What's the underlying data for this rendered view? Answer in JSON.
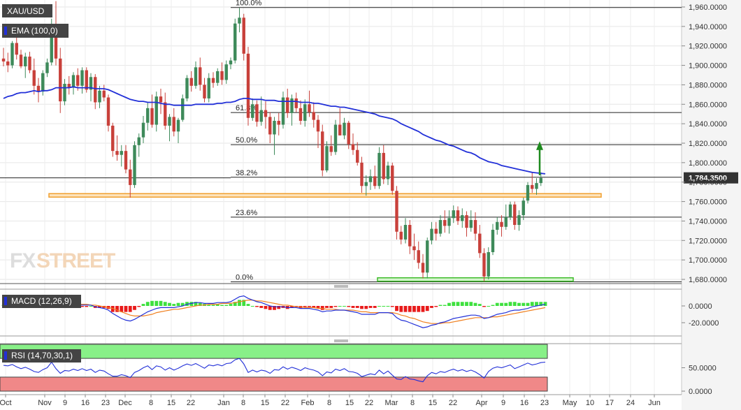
{
  "chart_data": {
    "type": "candlestick",
    "symbol": "XAU/USD",
    "indicator_labels": {
      "ema": "EMA (100,0)",
      "macd": "MACD (12,26,9)",
      "rsi": "RSI (14,70,30,1)"
    },
    "current_price_label": "1,784.3500",
    "ylim": [
      1676,
      1964
    ],
    "y_ticks": [
      "1,960.0000",
      "1,940.0000",
      "1,920.0000",
      "1,900.0000",
      "1,880.0000",
      "1,860.0000",
      "1,840.0000",
      "1,820.0000",
      "1,800.0000",
      "1,780.0000",
      "1,760.0000",
      "1,740.0000",
      "1,720.0000",
      "1,700.0000",
      "1,680.0000"
    ],
    "y_tick_values": [
      1960,
      1940,
      1920,
      1900,
      1880,
      1860,
      1840,
      1820,
      1800,
      1780,
      1760,
      1740,
      1720,
      1700,
      1680
    ],
    "x_ticks": [
      "Oct",
      "Nov",
      "9",
      "16",
      "23",
      "Dec",
      "8",
      "15",
      "22",
      "Jan",
      "8",
      "15",
      "22",
      "Feb",
      "8",
      "15",
      "22",
      "Mar",
      "8",
      "15",
      "22",
      "Apr",
      "9",
      "16",
      "23",
      "May",
      "10",
      "17",
      "24",
      "Jun"
    ],
    "fib_levels": [
      {
        "label": "100.0%",
        "value": 1959.5
      },
      {
        "label": "61.8%",
        "value": 1851.5
      },
      {
        "label": "50.0%",
        "value": 1818.5
      },
      {
        "label": "38.2%",
        "value": 1785.0
      },
      {
        "label": "23.6%",
        "value": 1744.0
      },
      {
        "label": "0.0%",
        "value": 1677.5
      }
    ],
    "support_zone_price": 1766,
    "double_bottom_zone_price": 1679.5,
    "last_close": 1784.35,
    "macd_ticks": [
      "0.0000",
      "-20.0000"
    ],
    "macd_tick_values": [
      0,
      -20
    ],
    "macd_ylim": [
      -32,
      18
    ],
    "rsi_ticks": [
      "50.0000",
      "0.0000"
    ],
    "rsi_tick_values": [
      50,
      0
    ],
    "rsi_ylim": [
      0,
      100
    ],
    "rsi_overbought": 70,
    "rsi_oversold": 30,
    "rsi_last": 62,
    "candles": [
      [
        1907,
        1918,
        1899,
        1904
      ],
      [
        1904,
        1913,
        1893,
        1900
      ],
      [
        1900,
        1925,
        1897,
        1923
      ],
      [
        1923,
        1931,
        1906,
        1911
      ],
      [
        1911,
        1916,
        1897,
        1899
      ],
      [
        1899,
        1913,
        1887,
        1909
      ],
      [
        1909,
        1914,
        1892,
        1895
      ],
      [
        1895,
        1907,
        1870,
        1879
      ],
      [
        1879,
        1887,
        1862,
        1873
      ],
      [
        1873,
        1895,
        1869,
        1892
      ],
      [
        1892,
        1907,
        1888,
        1903
      ],
      [
        1903,
        1948,
        1900,
        1942
      ],
      [
        1942,
        1966,
        1900,
        1907
      ],
      [
        1907,
        1918,
        1851,
        1863
      ],
      [
        1863,
        1886,
        1859,
        1881
      ],
      [
        1881,
        1889,
        1870,
        1877
      ],
      [
        1877,
        1893,
        1870,
        1890
      ],
      [
        1890,
        1897,
        1874,
        1879
      ],
      [
        1879,
        1898,
        1871,
        1895
      ],
      [
        1895,
        1898,
        1872,
        1875
      ],
      [
        1875,
        1892,
        1863,
        1888
      ],
      [
        1888,
        1891,
        1855,
        1862
      ],
      [
        1862,
        1879,
        1856,
        1874
      ],
      [
        1874,
        1880,
        1863,
        1867
      ],
      [
        1867,
        1870,
        1832,
        1838
      ],
      [
        1838,
        1841,
        1806,
        1812
      ],
      [
        1812,
        1828,
        1802,
        1808
      ],
      [
        1808,
        1818,
        1796,
        1812
      ],
      [
        1812,
        1818,
        1789,
        1793
      ],
      [
        1793,
        1803,
        1764,
        1777
      ],
      [
        1777,
        1822,
        1774,
        1818
      ],
      [
        1818,
        1830,
        1806,
        1826
      ],
      [
        1826,
        1848,
        1820,
        1841
      ],
      [
        1841,
        1862,
        1833,
        1856
      ],
      [
        1856,
        1870,
        1836,
        1839
      ],
      [
        1839,
        1873,
        1832,
        1868
      ],
      [
        1868,
        1876,
        1850,
        1862
      ],
      [
        1862,
        1872,
        1834,
        1838
      ],
      [
        1838,
        1850,
        1822,
        1847
      ],
      [
        1847,
        1856,
        1827,
        1832
      ],
      [
        1832,
        1846,
        1820,
        1844
      ],
      [
        1844,
        1870,
        1842,
        1866
      ],
      [
        1866,
        1890,
        1863,
        1887
      ],
      [
        1887,
        1894,
        1873,
        1879
      ],
      [
        1879,
        1904,
        1876,
        1898
      ],
      [
        1898,
        1908,
        1874,
        1880
      ],
      [
        1880,
        1887,
        1862,
        1866
      ],
      [
        1866,
        1892,
        1862,
        1887
      ],
      [
        1887,
        1893,
        1877,
        1882
      ],
      [
        1882,
        1897,
        1879,
        1894
      ],
      [
        1894,
        1903,
        1880,
        1885
      ],
      [
        1885,
        1905,
        1881,
        1901
      ],
      [
        1901,
        1908,
        1896,
        1905
      ],
      [
        1905,
        1948,
        1902,
        1943
      ],
      [
        1943,
        1959,
        1934,
        1949
      ],
      [
        1949,
        1953,
        1905,
        1912
      ],
      [
        1912,
        1919,
        1838,
        1846
      ],
      [
        1846,
        1866,
        1843,
        1860
      ],
      [
        1860,
        1864,
        1837,
        1842
      ],
      [
        1842,
        1868,
        1838,
        1854
      ],
      [
        1854,
        1863,
        1835,
        1847
      ],
      [
        1847,
        1852,
        1820,
        1829
      ],
      [
        1829,
        1847,
        1808,
        1843
      ],
      [
        1843,
        1851,
        1828,
        1839
      ],
      [
        1839,
        1873,
        1835,
        1867
      ],
      [
        1867,
        1876,
        1846,
        1851
      ],
      [
        1851,
        1870,
        1838,
        1866
      ],
      [
        1866,
        1872,
        1852,
        1856
      ],
      [
        1856,
        1864,
        1839,
        1843
      ],
      [
        1843,
        1865,
        1837,
        1860
      ],
      [
        1860,
        1874,
        1847,
        1852
      ],
      [
        1852,
        1862,
        1836,
        1844
      ],
      [
        1844,
        1849,
        1815,
        1832
      ],
      [
        1832,
        1839,
        1786,
        1792
      ],
      [
        1792,
        1822,
        1790,
        1817
      ],
      [
        1817,
        1828,
        1807,
        1811
      ],
      [
        1811,
        1844,
        1808,
        1839
      ],
      [
        1839,
        1856,
        1828,
        1828
      ],
      [
        1828,
        1846,
        1824,
        1841
      ],
      [
        1841,
        1843,
        1814,
        1819
      ],
      [
        1819,
        1830,
        1808,
        1813
      ],
      [
        1813,
        1821,
        1797,
        1800
      ],
      [
        1800,
        1806,
        1769,
        1776
      ],
      [
        1776,
        1787,
        1766,
        1780
      ],
      [
        1780,
        1793,
        1772,
        1786
      ],
      [
        1786,
        1797,
        1773,
        1776
      ],
      [
        1776,
        1816,
        1773,
        1810
      ],
      [
        1810,
        1818,
        1778,
        1783
      ],
      [
        1783,
        1801,
        1777,
        1797
      ],
      [
        1797,
        1800,
        1767,
        1771
      ],
      [
        1771,
        1776,
        1721,
        1729
      ],
      [
        1729,
        1735,
        1716,
        1721
      ],
      [
        1721,
        1743,
        1717,
        1736
      ],
      [
        1736,
        1741,
        1706,
        1714
      ],
      [
        1714,
        1727,
        1700,
        1710
      ],
      [
        1710,
        1719,
        1691,
        1697
      ],
      [
        1697,
        1706,
        1681,
        1687
      ],
      [
        1687,
        1723,
        1681,
        1720
      ],
      [
        1720,
        1739,
        1716,
        1732
      ],
      [
        1732,
        1739,
        1720,
        1727
      ],
      [
        1727,
        1746,
        1724,
        1741
      ],
      [
        1741,
        1751,
        1728,
        1735
      ],
      [
        1735,
        1751,
        1727,
        1743
      ],
      [
        1743,
        1756,
        1738,
        1751
      ],
      [
        1751,
        1755,
        1736,
        1740
      ],
      [
        1740,
        1753,
        1733,
        1746
      ],
      [
        1746,
        1750,
        1724,
        1733
      ],
      [
        1733,
        1751,
        1729,
        1741
      ],
      [
        1741,
        1749,
        1720,
        1727
      ],
      [
        1727,
        1736,
        1702,
        1707
      ],
      [
        1707,
        1712,
        1678,
        1683
      ],
      [
        1683,
        1713,
        1680,
        1708
      ],
      [
        1708,
        1737,
        1705,
        1731
      ],
      [
        1731,
        1744,
        1726,
        1739
      ],
      [
        1739,
        1746,
        1724,
        1734
      ],
      [
        1734,
        1757,
        1731,
        1744
      ],
      [
        1744,
        1760,
        1741,
        1757
      ],
      [
        1757,
        1760,
        1731,
        1736
      ],
      [
        1736,
        1751,
        1730,
        1746
      ],
      [
        1746,
        1764,
        1741,
        1761
      ],
      [
        1761,
        1780,
        1758,
        1777
      ],
      [
        1777,
        1790,
        1769,
        1773
      ],
      [
        1773,
        1784,
        1767,
        1779
      ],
      [
        1779,
        1790,
        1776,
        1784.35
      ]
    ],
    "ema": [
      1866,
      1868,
      1869,
      1871,
      1872,
      1872,
      1873,
      1874,
      1873,
      1874,
      1874,
      1875,
      1877,
      1877,
      1877,
      1877,
      1878,
      1877,
      1877,
      1877,
      1877,
      1876,
      1876,
      1876,
      1875,
      1873,
      1871,
      1869,
      1867,
      1865,
      1864,
      1863,
      1863,
      1862,
      1862,
      1862,
      1861,
      1860,
      1860,
      1859,
      1859,
      1859,
      1859,
      1859,
      1860,
      1860,
      1860,
      1860,
      1860,
      1861,
      1861,
      1862,
      1862,
      1863,
      1865,
      1866,
      1866,
      1865,
      1865,
      1865,
      1864,
      1864,
      1864,
      1863,
      1863,
      1863,
      1863,
      1863,
      1862,
      1862,
      1862,
      1861,
      1861,
      1860,
      1859,
      1858,
      1858,
      1857,
      1857,
      1856,
      1855,
      1854,
      1853,
      1852,
      1851,
      1850,
      1848,
      1847,
      1846,
      1845,
      1843,
      1840,
      1838,
      1836,
      1834,
      1832,
      1829,
      1827,
      1825,
      1823,
      1822,
      1820,
      1818,
      1817,
      1815,
      1813,
      1811,
      1810,
      1808,
      1805,
      1803,
      1801,
      1800,
      1799,
      1797,
      1796,
      1795,
      1794,
      1793,
      1792,
      1791,
      1790,
      1789.5,
      1789,
      1788.5
    ],
    "macd_line": [
      4,
      4,
      5,
      5,
      5,
      4,
      3,
      2,
      1,
      1,
      1,
      2,
      5,
      3,
      2,
      2,
      2,
      1,
      1,
      1,
      1,
      -1,
      -2,
      -3,
      -5,
      -9,
      -12,
      -15,
      -17,
      -18,
      -16,
      -13,
      -10,
      -7,
      -5,
      -3,
      -2,
      -2,
      -2,
      -2,
      -1,
      0,
      2,
      3,
      4,
      4,
      3,
      3,
      3,
      4,
      4,
      4,
      5,
      8,
      11,
      12,
      9,
      7,
      5,
      4,
      2,
      0,
      -1,
      -1,
      -1,
      -2,
      -2,
      -2,
      -3,
      -3,
      -3,
      -4,
      -5,
      -7,
      -6,
      -6,
      -5,
      -5,
      -5,
      -6,
      -7,
      -8,
      -10,
      -10,
      -10,
      -10,
      -8,
      -8,
      -8,
      -9,
      -14,
      -17,
      -18,
      -20,
      -22,
      -24,
      -26,
      -25,
      -23,
      -22,
      -20,
      -19,
      -17,
      -15,
      -14,
      -13,
      -12,
      -11,
      -11,
      -12,
      -15,
      -14,
      -12,
      -10,
      -9,
      -8,
      -6,
      -5,
      -5,
      -4,
      -3,
      -1,
      0,
      1,
      2
    ],
    "macd_signal": [
      3,
      3,
      3,
      4,
      4,
      4,
      4,
      3,
      3,
      3,
      2,
      2,
      3,
      3,
      3,
      2,
      2,
      2,
      2,
      2,
      1,
      1,
      0,
      -1,
      -2,
      -3,
      -5,
      -7,
      -9,
      -11,
      -12,
      -12,
      -12,
      -11,
      -10,
      -8,
      -7,
      -6,
      -5,
      -4,
      -4,
      -3,
      -2,
      -1,
      0,
      1,
      1,
      2,
      2,
      2,
      3,
      3,
      3,
      4,
      5,
      6,
      7,
      7,
      6,
      6,
      5,
      4,
      3,
      2,
      1,
      1,
      0,
      -1,
      -1,
      -2,
      -2,
      -2,
      -3,
      -3,
      -4,
      -4,
      -4,
      -5,
      -5,
      -5,
      -5,
      -6,
      -7,
      -7,
      -8,
      -8,
      -8,
      -8,
      -8,
      -8,
      -9,
      -11,
      -12,
      -14,
      -15,
      -17,
      -19,
      -20,
      -21,
      -21,
      -21,
      -20,
      -20,
      -19,
      -18,
      -17,
      -16,
      -15,
      -14,
      -14,
      -14,
      -14,
      -13,
      -13,
      -12,
      -11,
      -10,
      -9,
      -8,
      -7,
      -6,
      -5,
      -4,
      -3,
      -2
    ],
    "rsi": [
      55,
      54,
      57,
      52,
      48,
      51,
      47,
      42,
      40,
      46,
      50,
      62,
      48,
      38,
      44,
      43,
      47,
      44,
      48,
      44,
      47,
      40,
      45,
      43,
      37,
      32,
      32,
      35,
      33,
      29,
      40,
      44,
      50,
      54,
      46,
      54,
      52,
      45,
      50,
      45,
      49,
      54,
      58,
      55,
      59,
      54,
      49,
      56,
      54,
      57,
      54,
      59,
      60,
      67,
      70,
      58,
      40,
      45,
      41,
      45,
      43,
      38,
      46,
      45,
      52,
      47,
      51,
      48,
      44,
      50,
      47,
      45,
      41,
      33,
      41,
      39,
      47,
      44,
      48,
      42,
      41,
      38,
      31,
      34,
      37,
      35,
      45,
      37,
      43,
      34,
      26,
      25,
      31,
      26,
      25,
      22,
      20,
      33,
      40,
      37,
      42,
      40,
      44,
      47,
      43,
      46,
      42,
      45,
      41,
      35,
      28,
      42,
      49,
      52,
      50,
      53,
      56,
      48,
      52,
      56,
      60,
      56,
      58,
      61,
      62
    ]
  }
}
